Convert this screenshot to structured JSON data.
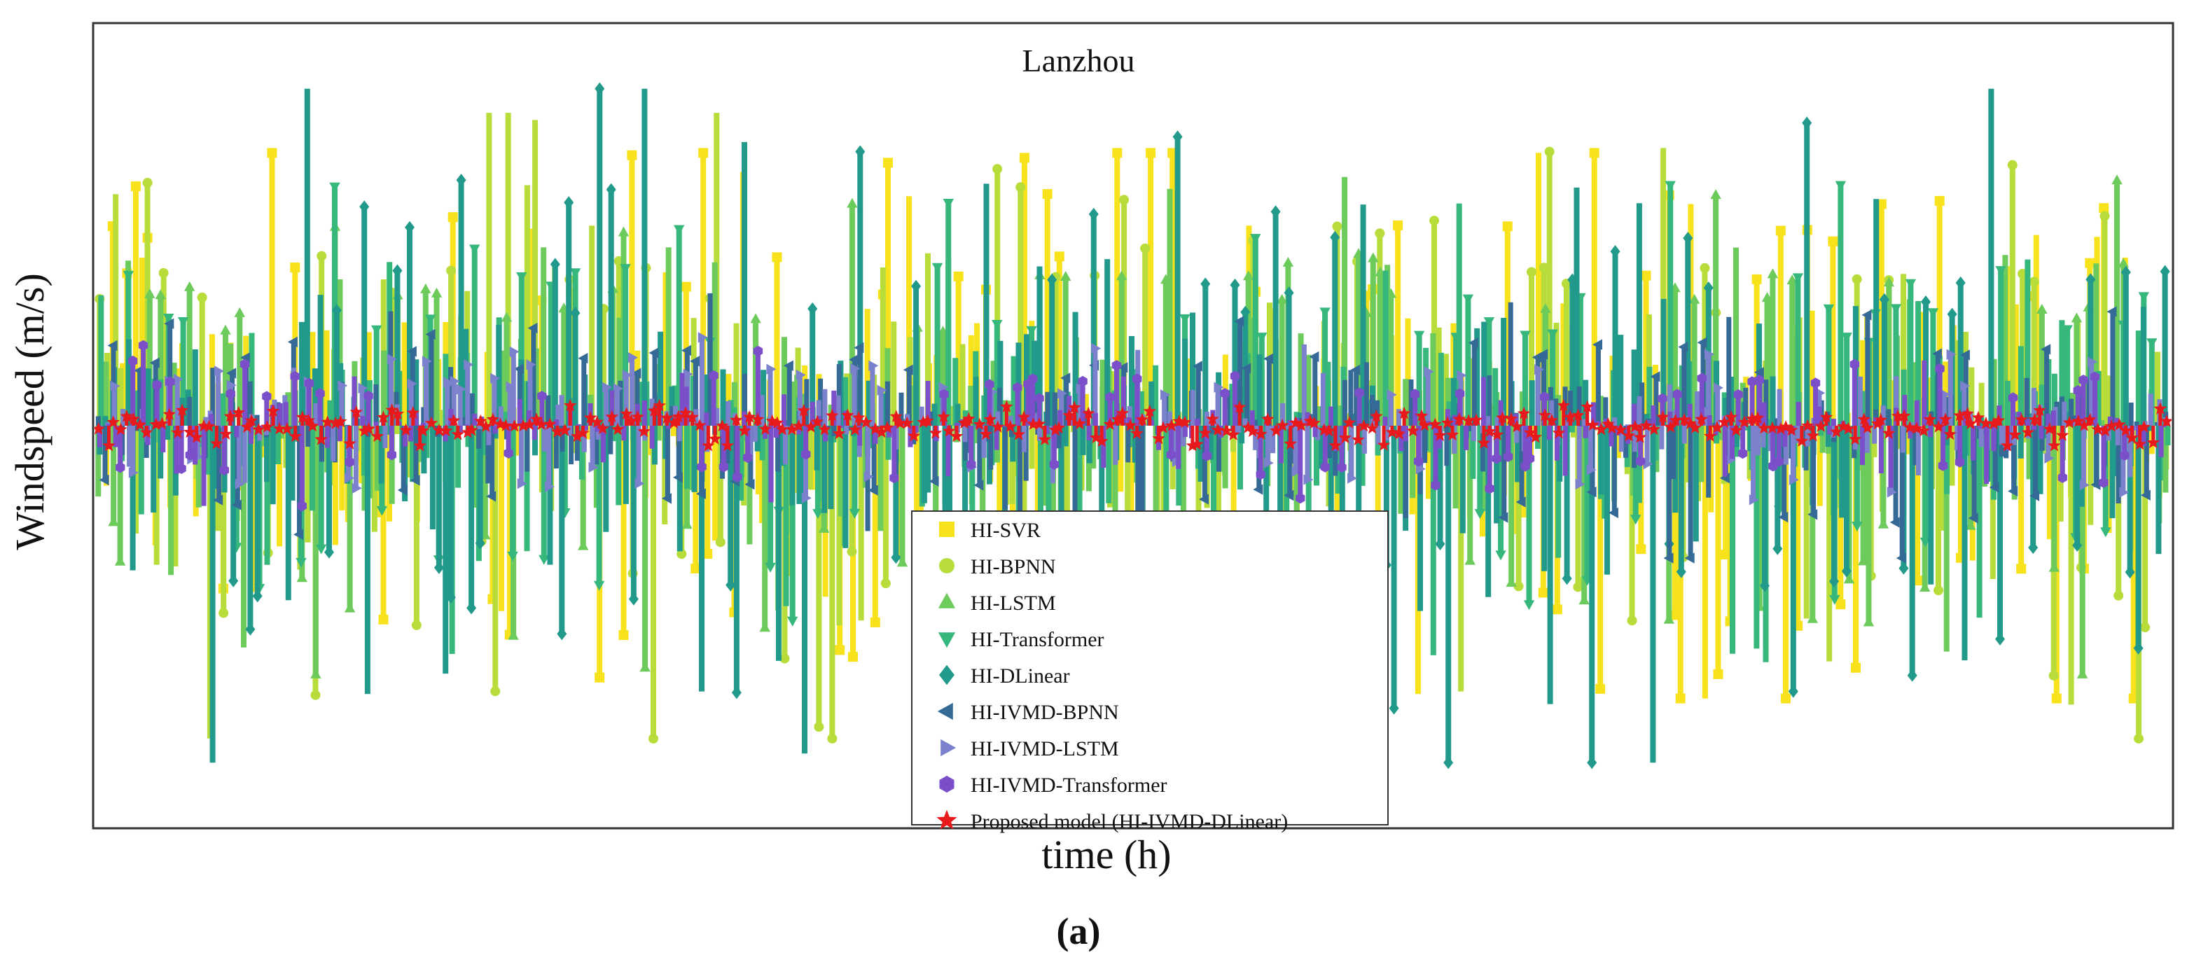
{
  "chart_data": {
    "type": "scatter",
    "subtype": "stem-error",
    "title": "Lanzhou",
    "xlabel": "time (h)",
    "ylabel": "Windspeed (m/s)",
    "caption_open": "(",
    "caption_letter": "a",
    "caption_close": ")",
    "n_points": 300,
    "ylim": [
      -1.0,
      1.0
    ],
    "grid": false,
    "legend_position": "bottom-center",
    "series": [
      {
        "name": "HI-SVR",
        "color": "#f7e21c",
        "marker": "square",
        "amplitude": 0.34,
        "max_abs": 0.68
      },
      {
        "name": "HI-BPNN",
        "color": "#b8dd3a",
        "marker": "circle",
        "amplitude": 0.31,
        "max_abs": 0.78
      },
      {
        "name": "HI-LSTM",
        "color": "#6ccb5b",
        "marker": "triangle-up",
        "amplitude": 0.26,
        "max_abs": 0.62
      },
      {
        "name": "HI-Transformer",
        "color": "#36b77c",
        "marker": "triangle-down",
        "amplitude": 0.23,
        "max_abs": 0.6
      },
      {
        "name": "HI-DLinear",
        "color": "#219a8b",
        "marker": "diamond",
        "amplitude": 0.3,
        "max_abs": 0.84
      },
      {
        "name": "HI-IVMD-BPNN",
        "color": "#356a96",
        "marker": "triangle-left",
        "amplitude": 0.13,
        "max_abs": 0.33
      },
      {
        "name": "HI-IVMD-LSTM",
        "color": "#7b81cc",
        "marker": "triangle-right",
        "amplitude": 0.085,
        "max_abs": 0.22
      },
      {
        "name": "HI-IVMD-Transformer",
        "color": "#7a4fc9",
        "marker": "hexagon",
        "amplitude": 0.075,
        "max_abs": 0.2
      },
      {
        "name": "Proposed model (HI-IVMD-DLinear)",
        "color": "#e8191c",
        "marker": "star",
        "amplitude": 0.022,
        "max_abs": 0.05
      }
    ]
  }
}
